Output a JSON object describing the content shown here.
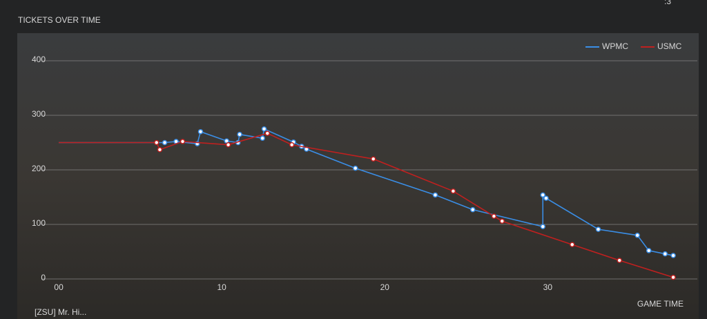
{
  "corner_text": ":3",
  "player_tag": "[ZSU] Mr. Hi...",
  "chart_data": {
    "type": "line",
    "title": "TICKETS OVER TIME",
    "x_label": "GAME TIME",
    "xlim": [
      -0.3,
      38.5
    ],
    "ylim": [
      0,
      400
    ],
    "xticks": [
      {
        "value": 0,
        "label": "00"
      },
      10,
      20,
      30
    ],
    "yticks": [
      0,
      100,
      200,
      300,
      400
    ],
    "grid": true,
    "legend": "top-right",
    "series": [
      {
        "name": "WPMC",
        "color": "#3a8ee6",
        "x": [
          0,
          6.5,
          7.2,
          8.5,
          8.7,
          10.3,
          11.0,
          11.1,
          12.5,
          12.6,
          14.4,
          14.9,
          15.2,
          18.2,
          23.1,
          25.4,
          29.7,
          29.7,
          29.9,
          33.1,
          35.5,
          36.2,
          37.2,
          37.7
        ],
        "values": [
          250,
          250,
          252,
          248,
          270,
          253,
          250,
          265,
          258,
          275,
          251,
          243,
          238,
          203,
          154,
          127,
          96,
          154,
          148,
          91,
          80,
          52,
          46,
          43
        ]
      },
      {
        "name": "USMC",
        "color": "#c0201f",
        "x": [
          0,
          6.0,
          6.2,
          7.6,
          10.4,
          12.8,
          14.3,
          19.3,
          24.2,
          26.7,
          27.2,
          31.5,
          34.4,
          37.7
        ],
        "values": [
          250,
          250,
          237,
          252,
          246,
          267,
          246,
          220,
          161,
          115,
          106,
          63,
          34,
          3
        ]
      }
    ]
  }
}
